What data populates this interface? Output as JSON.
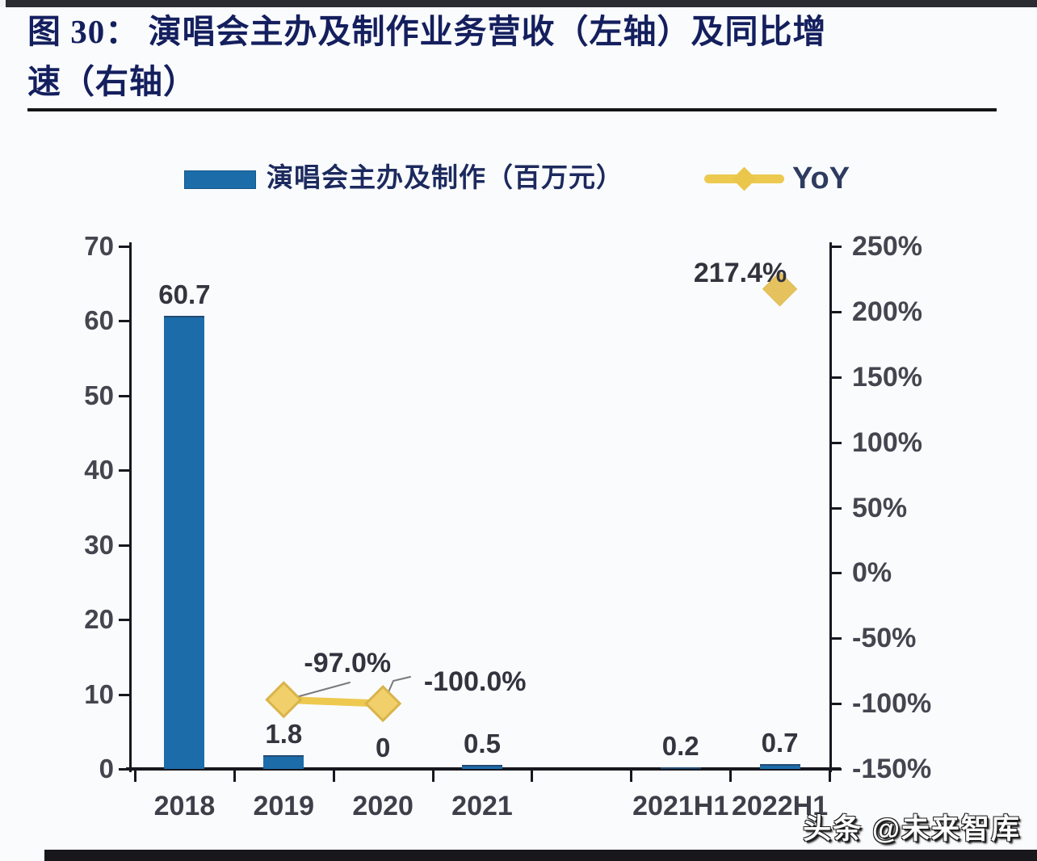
{
  "page": {
    "title_line1": "图  30：  演唱会主办及制作业务营收（左轴）及同比增",
    "title_line2": "速（右轴）",
    "watermark": "头条 @未来智库"
  },
  "legend": {
    "bar_label": "演唱会主办及制作（百万元）",
    "yoy_label": "YoY"
  },
  "colors": {
    "bar_blue": "#1b6ca9",
    "yoy_yellow_line": "#edc94f",
    "diamond_fill": "#f1d06b",
    "diamond_stroke": "#d9b44a",
    "title_navy": "#141f5e",
    "tick_label_gray": "#45454f",
    "leader_gray": "#7a7a7a"
  },
  "chart_data": {
    "type": "bar",
    "subtype": "combo bar + line(diamond markers), dual axis",
    "title": "演唱会主办及制作业务营收（左轴）及同比增速（右轴）",
    "categories": [
      "2018",
      "2019",
      "2020",
      "2021",
      "2021H1",
      "2022H1"
    ],
    "series": [
      {
        "name": "演唱会主办及制作（百万元）",
        "type": "bar",
        "axis": "left",
        "values": [
          60.7,
          1.8,
          0,
          0.5,
          0.2,
          0.7
        ],
        "labels": [
          "60.7",
          "1.8",
          "0",
          "0.5",
          "0.2",
          "0.7"
        ]
      },
      {
        "name": "YoY",
        "type": "line",
        "axis": "right",
        "values": [
          null,
          -97.0,
          -100.0,
          null,
          null,
          217.4
        ],
        "labels": [
          null,
          "-97.0%",
          "-100.0%",
          null,
          null,
          "217.4%"
        ]
      }
    ],
    "left_axis": {
      "min": 0,
      "max": 70,
      "tick_labels": [
        "70",
        "60",
        "50",
        "40",
        "30",
        "20",
        "10",
        "0"
      ]
    },
    "right_axis": {
      "min": -150,
      "max": 250,
      "tick_labels": [
        "250%",
        "200%",
        "150%",
        "100%",
        "50%",
        "0%",
        "-50%",
        "-100%",
        "-150%"
      ]
    },
    "layout_hint": "empty category slot between 2021 and 2021H1; legend at top; grid off"
  }
}
